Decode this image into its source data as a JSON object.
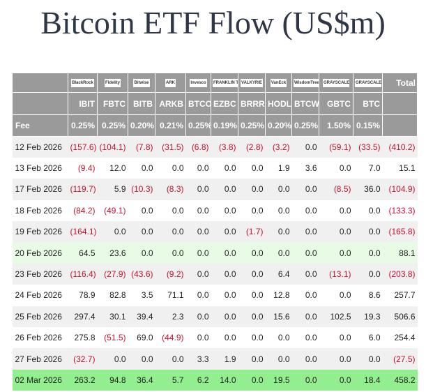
{
  "title": "Bitcoin ETF Flow (US$m)",
  "table": {
    "logos": [
      "BlackRock",
      "Fidelity",
      "Bitwise",
      "ARK",
      "Invesco",
      "FRANKLIN TEMPLETON",
      "VALKYRIE",
      "VanEck",
      "WisdomTree",
      "GRAYSCALE",
      "GRAYSCALE",
      "Total"
    ],
    "tickers": [
      "IBIT",
      "FBTC",
      "BITB",
      "ARKB",
      "BTCO",
      "EZBC",
      "BRRR",
      "HODL",
      "BTCW",
      "GBTC",
      "BTC"
    ],
    "fee_label": "Fee",
    "fees": [
      "0.25%",
      "0.25%",
      "0.20%",
      "0.21%",
      "0.25%",
      "0.19%",
      "0.25%",
      "0.20%",
      "0.25%",
      "1.50%",
      "0.15%"
    ],
    "rows": [
      [
        "12 Feb 2026",
        "(157.6)",
        "(104.1)",
        "(7.8)",
        "(31.5)",
        "(6.8)",
        "(3.8)",
        "(2.8)",
        "(3.2)",
        "0.0",
        "(59.1)",
        "(33.5)",
        "(410.2)"
      ],
      [
        "13 Feb 2026",
        "(9.4)",
        "12.0",
        "0.0",
        "0.0",
        "0.0",
        "0.0",
        "0.0",
        "1.9",
        "3.6",
        "0.0",
        "7.0",
        "15.1"
      ],
      [
        "17 Feb 2026",
        "(119.7)",
        "5.9",
        "(10.3)",
        "(8.3)",
        "0.0",
        "0.0",
        "0.0",
        "0.0",
        "0.0",
        "(8.5)",
        "36.0",
        "(104.9)"
      ],
      [
        "18 Feb 2026",
        "(84.2)",
        "(49.1)",
        "0.0",
        "0.0",
        "0.0",
        "0.0",
        "0.0",
        "0.0",
        "0.0",
        "0.0",
        "0.0",
        "(133.3)"
      ],
      [
        "19 Feb 2026",
        "(164.1)",
        "0.0",
        "0.0",
        "0.0",
        "0.0",
        "0.0",
        "(1.7)",
        "0.0",
        "0.0",
        "0.0",
        "0.0",
        "(165.8)"
      ],
      [
        "20 Feb 2026",
        "64.5",
        "23.6",
        "0.0",
        "0.0",
        "0.0",
        "0.0",
        "0.0",
        "0.0",
        "0.0",
        "0.0",
        "0.0",
        "88.1"
      ],
      [
        "23 Feb 2026",
        "(116.4)",
        "(27.9)",
        "(43.6)",
        "(9.2)",
        "0.0",
        "0.0",
        "0.0",
        "6.4",
        "0.0",
        "(13.1)",
        "0.0",
        "(203.8)"
      ],
      [
        "24 Feb 2026",
        "78.9",
        "82.8",
        "3.5",
        "71.1",
        "0.0",
        "0.0",
        "0.0",
        "12.8",
        "0.0",
        "0.0",
        "8.6",
        "257.7"
      ],
      [
        "25 Feb 2026",
        "297.4",
        "30.1",
        "39.4",
        "2.3",
        "0.0",
        "0.0",
        "0.0",
        "15.6",
        "0.0",
        "102.5",
        "19.3",
        "506.6"
      ],
      [
        "26 Feb 2026",
        "275.8",
        "(51.5)",
        "69.0",
        "(44.9)",
        "0.0",
        "0.0",
        "0.0",
        "0.0",
        "0.0",
        "0.0",
        "6.0",
        "254.4"
      ],
      [
        "27 Feb 2026",
        "(32.7)",
        "0.0",
        "0.0",
        "0.0",
        "3.3",
        "1.9",
        "0.0",
        "0.0",
        "0.0",
        "0.0",
        "0.0",
        "(27.5)"
      ],
      [
        "02 Mar 2026",
        "263.2",
        "94.8",
        "36.4",
        "5.7",
        "6.2",
        "14.0",
        "0.0",
        "19.5",
        "0.0",
        "0.0",
        "18.4",
        "458.2"
      ]
    ]
  }
}
